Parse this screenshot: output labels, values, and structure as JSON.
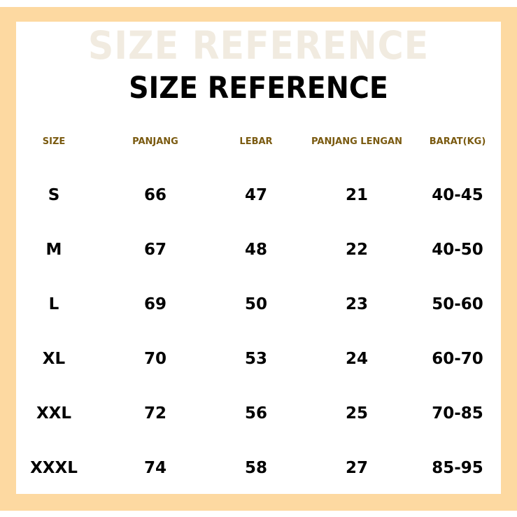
{
  "watermark": "SIZE REFERENCE",
  "title": "SIZE REFERENCE",
  "headers": [
    "SIZE",
    "PANJANG",
    "LEBAR",
    "PANJANG LENGAN",
    "BARAT(KG)"
  ],
  "rows": [
    [
      "S",
      "66",
      "47",
      "21",
      "40-45"
    ],
    [
      "M",
      "67",
      "48",
      "22",
      "40-50"
    ],
    [
      "L",
      "69",
      "50",
      "23",
      "50-60"
    ],
    [
      "XL",
      "70",
      "53",
      "24",
      "60-70"
    ],
    [
      "XXL",
      "72",
      "56",
      "25",
      "70-85"
    ],
    [
      "XXXL",
      "74",
      "58",
      "27",
      "85-95"
    ]
  ],
  "colors": {
    "frame": "#fdd9a1",
    "header_text": "#7a5a10",
    "watermark": "#f1ebe0"
  }
}
